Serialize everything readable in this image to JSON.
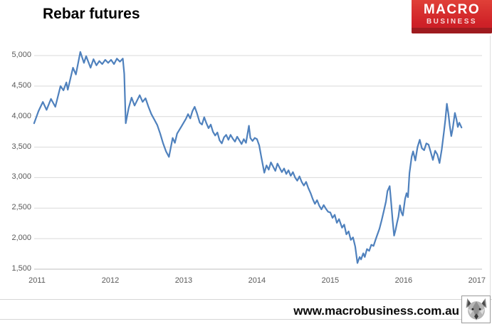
{
  "header": {
    "title": "Rebar futures",
    "logo": {
      "line1": "MACRO",
      "line2": "BUSINESS",
      "bg_color": "#cf2127",
      "bar_color": "#9e1b1f",
      "text_color": "#ffffff"
    }
  },
  "footer": {
    "url": "www.macrobusiness.com.au",
    "logo_icon": "wolf-head"
  },
  "chart_data": {
    "type": "line",
    "title": "Rebar futures",
    "xlabel": "",
    "ylabel": "",
    "grid": true,
    "legend": "none",
    "xlim": [
      2011,
      2017
    ],
    "ylim": [
      1500,
      5000
    ],
    "line_color": "#4F81BD",
    "gridline_color": "#d9d9d9",
    "axis_line_color": "#bfbfbf",
    "tick_label_color": "#595959",
    "x_ticks": [
      {
        "value": 2011,
        "label": "2011"
      },
      {
        "value": 2012,
        "label": "2012"
      },
      {
        "value": 2013,
        "label": "2013"
      },
      {
        "value": 2014,
        "label": "2014"
      },
      {
        "value": 2015,
        "label": "2015"
      },
      {
        "value": 2016,
        "label": "2016"
      },
      {
        "value": 2017,
        "label": "2017"
      }
    ],
    "y_ticks": [
      {
        "value": 1500,
        "label": "1,500"
      },
      {
        "value": 2000,
        "label": "2,000"
      },
      {
        "value": 2500,
        "label": "2,500"
      },
      {
        "value": 3000,
        "label": "3,000"
      },
      {
        "value": 3500,
        "label": "3,500"
      },
      {
        "value": 4000,
        "label": "4,000"
      },
      {
        "value": 4500,
        "label": "4,500"
      },
      {
        "value": 5000,
        "label": "5,000"
      }
    ],
    "series": [
      {
        "name": "Rebar futures",
        "color": "#4F81BD",
        "points": [
          [
            2010.96,
            3890
          ],
          [
            2011.02,
            4090
          ],
          [
            2011.08,
            4240
          ],
          [
            2011.13,
            4110
          ],
          [
            2011.19,
            4290
          ],
          [
            2011.25,
            4160
          ],
          [
            2011.32,
            4500
          ],
          [
            2011.36,
            4430
          ],
          [
            2011.4,
            4560
          ],
          [
            2011.42,
            4440
          ],
          [
            2011.49,
            4800
          ],
          [
            2011.53,
            4690
          ],
          [
            2011.59,
            5060
          ],
          [
            2011.64,
            4880
          ],
          [
            2011.67,
            4990
          ],
          [
            2011.73,
            4800
          ],
          [
            2011.77,
            4940
          ],
          [
            2011.81,
            4840
          ],
          [
            2011.85,
            4910
          ],
          [
            2011.89,
            4860
          ],
          [
            2011.93,
            4930
          ],
          [
            2011.97,
            4880
          ],
          [
            2012.01,
            4930
          ],
          [
            2012.05,
            4860
          ],
          [
            2012.09,
            4950
          ],
          [
            2012.13,
            4900
          ],
          [
            2012.17,
            4950
          ],
          [
            2012.19,
            4700
          ],
          [
            2012.21,
            3890
          ],
          [
            2012.25,
            4140
          ],
          [
            2012.29,
            4310
          ],
          [
            2012.33,
            4180
          ],
          [
            2012.4,
            4350
          ],
          [
            2012.44,
            4240
          ],
          [
            2012.48,
            4300
          ],
          [
            2012.52,
            4160
          ],
          [
            2012.56,
            4040
          ],
          [
            2012.6,
            3950
          ],
          [
            2012.64,
            3860
          ],
          [
            2012.68,
            3720
          ],
          [
            2012.72,
            3560
          ],
          [
            2012.76,
            3430
          ],
          [
            2012.8,
            3340
          ],
          [
            2012.85,
            3650
          ],
          [
            2012.88,
            3570
          ],
          [
            2012.91,
            3720
          ],
          [
            2012.94,
            3780
          ],
          [
            2012.97,
            3840
          ],
          [
            2013.0,
            3900
          ],
          [
            2013.03,
            3960
          ],
          [
            2013.06,
            4040
          ],
          [
            2013.09,
            3970
          ],
          [
            2013.12,
            4090
          ],
          [
            2013.15,
            4160
          ],
          [
            2013.18,
            4060
          ],
          [
            2013.22,
            3900
          ],
          [
            2013.25,
            3870
          ],
          [
            2013.28,
            3990
          ],
          [
            2013.31,
            3890
          ],
          [
            2013.34,
            3810
          ],
          [
            2013.37,
            3870
          ],
          [
            2013.4,
            3750
          ],
          [
            2013.43,
            3690
          ],
          [
            2013.46,
            3740
          ],
          [
            2013.49,
            3610
          ],
          [
            2013.52,
            3560
          ],
          [
            2013.55,
            3660
          ],
          [
            2013.58,
            3700
          ],
          [
            2013.61,
            3620
          ],
          [
            2013.64,
            3700
          ],
          [
            2013.67,
            3640
          ],
          [
            2013.7,
            3590
          ],
          [
            2013.73,
            3670
          ],
          [
            2013.76,
            3610
          ],
          [
            2013.79,
            3550
          ],
          [
            2013.82,
            3630
          ],
          [
            2013.85,
            3570
          ],
          [
            2013.89,
            3850
          ],
          [
            2013.91,
            3650
          ],
          [
            2013.94,
            3600
          ],
          [
            2013.97,
            3650
          ],
          [
            2014.0,
            3630
          ],
          [
            2014.03,
            3530
          ],
          [
            2014.06,
            3330
          ],
          [
            2014.1,
            3080
          ],
          [
            2014.13,
            3200
          ],
          [
            2014.16,
            3130
          ],
          [
            2014.19,
            3250
          ],
          [
            2014.22,
            3180
          ],
          [
            2014.25,
            3110
          ],
          [
            2014.28,
            3230
          ],
          [
            2014.31,
            3160
          ],
          [
            2014.34,
            3090
          ],
          [
            2014.37,
            3150
          ],
          [
            2014.4,
            3060
          ],
          [
            2014.43,
            3120
          ],
          [
            2014.46,
            3030
          ],
          [
            2014.49,
            3090
          ],
          [
            2014.52,
            3000
          ],
          [
            2014.55,
            2950
          ],
          [
            2014.58,
            3020
          ],
          [
            2014.61,
            2930
          ],
          [
            2014.64,
            2870
          ],
          [
            2014.67,
            2930
          ],
          [
            2014.7,
            2830
          ],
          [
            2014.73,
            2750
          ],
          [
            2014.76,
            2650
          ],
          [
            2014.79,
            2570
          ],
          [
            2014.82,
            2630
          ],
          [
            2014.85,
            2540
          ],
          [
            2014.88,
            2480
          ],
          [
            2014.91,
            2550
          ],
          [
            2014.94,
            2490
          ],
          [
            2014.97,
            2440
          ],
          [
            2015.0,
            2430
          ],
          [
            2015.03,
            2340
          ],
          [
            2015.06,
            2390
          ],
          [
            2015.09,
            2260
          ],
          [
            2015.12,
            2320
          ],
          [
            2015.16,
            2180
          ],
          [
            2015.19,
            2230
          ],
          [
            2015.22,
            2070
          ],
          [
            2015.25,
            2120
          ],
          [
            2015.28,
            1980
          ],
          [
            2015.31,
            2020
          ],
          [
            2015.34,
            1870
          ],
          [
            2015.37,
            1600
          ],
          [
            2015.4,
            1700
          ],
          [
            2015.42,
            1660
          ],
          [
            2015.45,
            1760
          ],
          [
            2015.47,
            1700
          ],
          [
            2015.5,
            1830
          ],
          [
            2015.53,
            1800
          ],
          [
            2015.56,
            1900
          ],
          [
            2015.59,
            1880
          ],
          [
            2015.62,
            1990
          ],
          [
            2015.64,
            2060
          ],
          [
            2015.67,
            2160
          ],
          [
            2015.7,
            2300
          ],
          [
            2015.73,
            2450
          ],
          [
            2015.76,
            2610
          ],
          [
            2015.78,
            2780
          ],
          [
            2015.81,
            2860
          ],
          [
            2015.83,
            2600
          ],
          [
            2015.85,
            2300
          ],
          [
            2015.87,
            2050
          ],
          [
            2015.89,
            2140
          ],
          [
            2015.91,
            2260
          ],
          [
            2015.93,
            2360
          ],
          [
            2015.95,
            2545
          ],
          [
            2015.97,
            2430
          ],
          [
            2015.99,
            2380
          ],
          [
            2016.02,
            2650
          ],
          [
            2016.04,
            2745
          ],
          [
            2016.06,
            2680
          ],
          [
            2016.08,
            3075
          ],
          [
            2016.11,
            3345
          ],
          [
            2016.13,
            3430
          ],
          [
            2016.16,
            3280
          ],
          [
            2016.19,
            3500
          ],
          [
            2016.22,
            3620
          ],
          [
            2016.25,
            3480
          ],
          [
            2016.28,
            3450
          ],
          [
            2016.31,
            3560
          ],
          [
            2016.34,
            3540
          ],
          [
            2016.37,
            3420
          ],
          [
            2016.4,
            3290
          ],
          [
            2016.43,
            3440
          ],
          [
            2016.46,
            3380
          ],
          [
            2016.49,
            3240
          ],
          [
            2016.52,
            3460
          ],
          [
            2016.55,
            3750
          ],
          [
            2016.57,
            3950
          ],
          [
            2016.59,
            4210
          ],
          [
            2016.61,
            4050
          ],
          [
            2016.63,
            3850
          ],
          [
            2016.65,
            3680
          ],
          [
            2016.67,
            3800
          ],
          [
            2016.7,
            4060
          ],
          [
            2016.72,
            3960
          ],
          [
            2016.74,
            3830
          ],
          [
            2016.76,
            3900
          ],
          [
            2016.79,
            3820
          ]
        ]
      }
    ]
  }
}
